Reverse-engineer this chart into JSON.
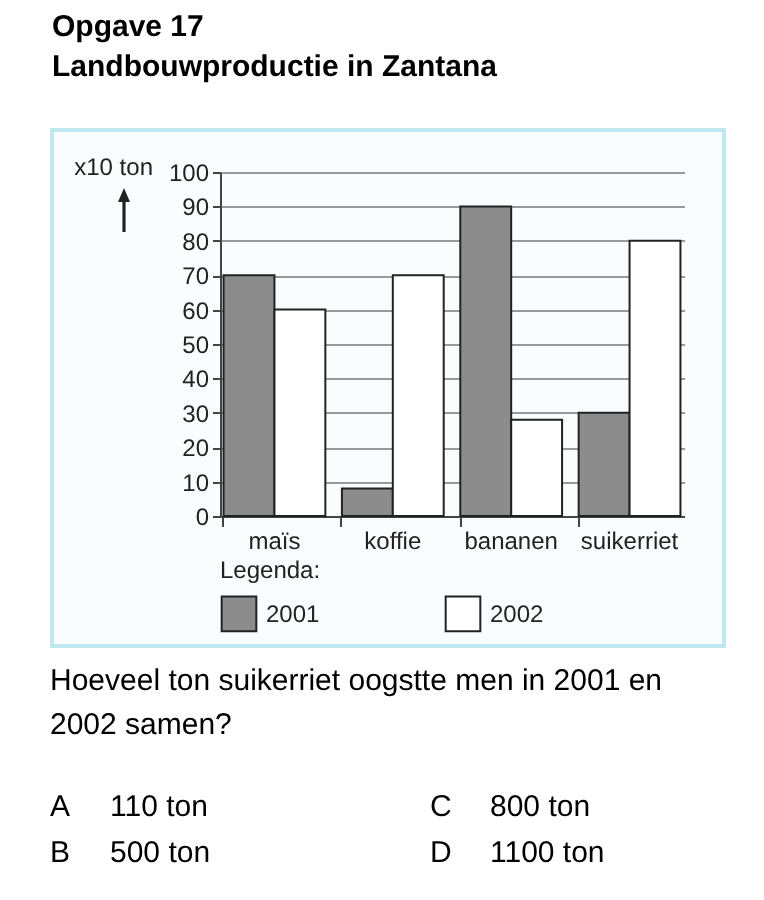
{
  "chart_data": {
    "type": "bar",
    "title": "Opgave 17",
    "subtitle": "Landbouwproductie in Zantana",
    "ylabel": "x10 ton",
    "legend_title": "Legenda:",
    "categories": [
      "maïs",
      "koffie",
      "bananen",
      "suikerriet"
    ],
    "series": [
      {
        "name": "2001",
        "color": "#8c8c8c",
        "values": [
          70,
          8,
          90,
          30
        ]
      },
      {
        "name": "2002",
        "color": "#ffffff",
        "values": [
          60,
          70,
          28,
          80
        ]
      }
    ],
    "ylim": [
      0,
      100
    ],
    "yticks": [
      0,
      10,
      20,
      30,
      40,
      50,
      60,
      70,
      80,
      90,
      100
    ],
    "grid": "y",
    "legend": "bottom",
    "annotations": [
      "Hoeveel ton suikerriet oogstte men in 2001 en 2002 samen?",
      "A 110 ton",
      "B 500 ton",
      "C 800 ton",
      "D 1100 ton"
    ]
  }
}
